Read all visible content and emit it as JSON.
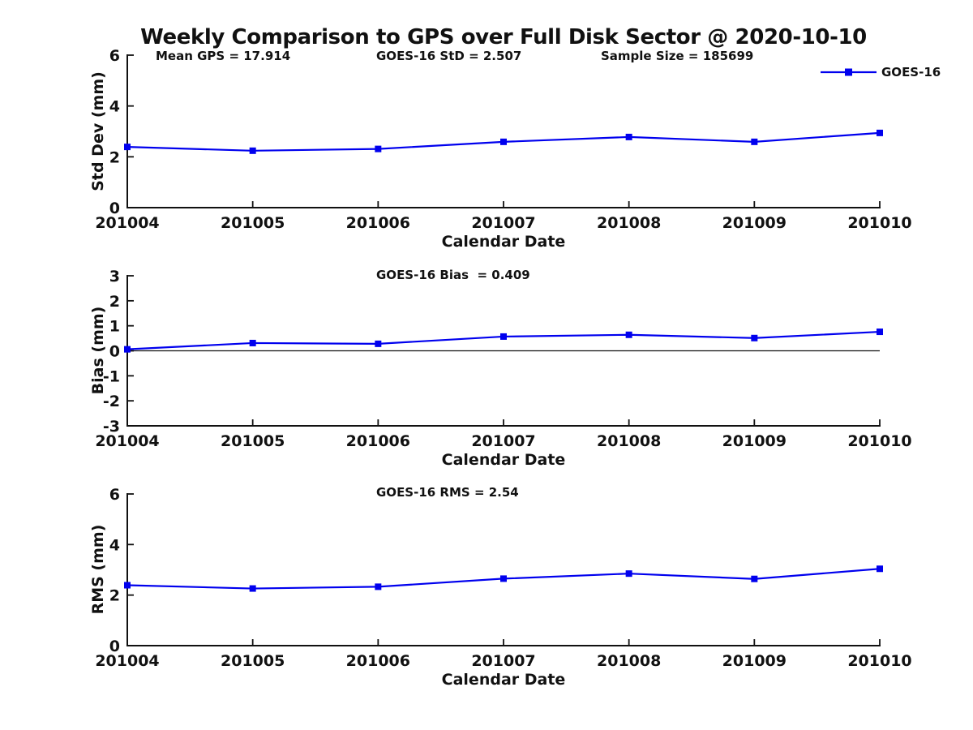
{
  "figure_title": "Weekly Comparison to GPS over Full Disk Sector @ 2020-10-10",
  "accent_color": "#0000EE",
  "axis_color": "#111111",
  "chart_data": [
    {
      "type": "line",
      "panel": "std-dev",
      "annotations": [
        "Mean GPS = 17.914",
        "GOES-16 StD = 2.507",
        "Sample Size = 185699"
      ],
      "xlabel": "Calendar Date",
      "ylabel": "Std Dev (mm)",
      "categories": [
        "201004",
        "201005",
        "201006",
        "201007",
        "201008",
        "201009",
        "201010"
      ],
      "series": [
        {
          "name": "GOES-16",
          "marker": "square",
          "values": [
            2.39,
            2.24,
            2.31,
            2.59,
            2.78,
            2.59,
            2.94
          ]
        }
      ],
      "ylim": [
        0,
        6
      ],
      "yticks": [
        0,
        2,
        4,
        6
      ],
      "grid": false,
      "legend": {
        "label": "GOES-16",
        "position": "northeast"
      }
    },
    {
      "type": "line",
      "panel": "bias",
      "annotations": [
        "GOES-16 Bias  = 0.409"
      ],
      "xlabel": "Calendar Date",
      "ylabel": "Bias (mm)",
      "categories": [
        "201004",
        "201005",
        "201006",
        "201007",
        "201008",
        "201009",
        "201010"
      ],
      "series": [
        {
          "name": "GOES-16",
          "marker": "square",
          "values": [
            0.06,
            0.31,
            0.28,
            0.57,
            0.64,
            0.51,
            0.76
          ]
        }
      ],
      "ylim": [
        -3,
        3
      ],
      "yticks": [
        -3,
        -2,
        -1,
        0,
        1,
        2,
        3
      ],
      "zero_line": true,
      "grid": false
    },
    {
      "type": "line",
      "panel": "rms",
      "annotations": [
        "GOES-16 RMS = 2.54"
      ],
      "xlabel": "Calendar Date",
      "ylabel": "RMS (mm)",
      "categories": [
        "201004",
        "201005",
        "201006",
        "201007",
        "201008",
        "201009",
        "201010"
      ],
      "series": [
        {
          "name": "GOES-16",
          "marker": "square",
          "values": [
            2.39,
            2.26,
            2.33,
            2.65,
            2.85,
            2.64,
            3.04
          ]
        }
      ],
      "ylim": [
        0,
        6
      ],
      "yticks": [
        0,
        2,
        4,
        6
      ],
      "grid": false
    }
  ]
}
